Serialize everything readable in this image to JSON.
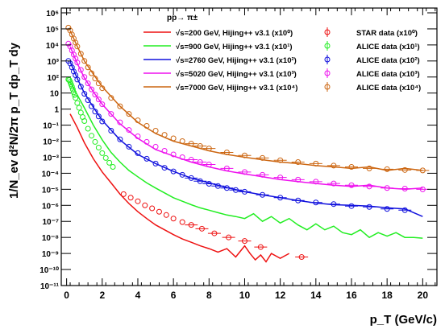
{
  "chart_data": {
    "type": "line",
    "title": "",
    "plot_label": "pp→ π±",
    "xlabel": "p_T (GeV/c)",
    "ylabel": "1/N_ev d²N/2π p_T dp_T dy",
    "x_ticks": [
      0,
      2,
      4,
      6,
      8,
      10,
      12,
      14,
      16,
      18,
      20
    ],
    "xlim": [
      -0.3,
      20.8
    ],
    "y_scale": "log",
    "ylim_exp": [
      -11,
      6.3
    ],
    "y_tick_exponents": [
      -11,
      -10,
      -9,
      -8,
      -7,
      -6,
      -5,
      -4,
      -3,
      -2,
      -1,
      0,
      1,
      2,
      3,
      4,
      5,
      6
    ],
    "y_tick_labels": [
      "10^-11",
      "10^-10",
      "10^-9",
      "10^-8",
      "10^-7",
      "10^-6",
      "10^-5",
      "10^-4",
      "10^-3",
      "10^-2",
      "10^-1",
      "1",
      "10",
      "10^2",
      "10^3",
      "10^4",
      "10^5",
      "10^6"
    ],
    "legend_position": "top-right",
    "grid": false,
    "series": [
      {
        "name": "√s=200 GeV, Hijing++ v3.1 (x10⁰)",
        "color": "#ee1111",
        "kind": "line",
        "x": [
          0.2,
          0.6,
          1,
          1.5,
          2,
          2.5,
          3,
          3.5,
          4,
          4.5,
          5,
          5.5,
          6,
          6.5,
          7,
          7.5,
          8,
          8.5,
          9,
          9.5,
          10,
          10.3,
          10.6,
          10.9,
          11.2,
          11.5,
          12,
          12.5
        ],
        "y": [
          0.5,
          0.07,
          0.008,
          0.0008,
          0.00012,
          2.5e-05,
          5e-06,
          1.3e-06,
          4e-07,
          1.5e-07,
          6e-08,
          3e-08,
          1.5e-08,
          8e-09,
          5e-09,
          3e-09,
          2e-09,
          1.2e-09,
          2e-09,
          6e-10,
          3e-09,
          1e-09,
          4e-10,
          8e-10,
          3e-10,
          1e-09,
          5e-10,
          1e-09
        ]
      },
      {
        "name": "STAR data (x10⁰)",
        "color": "#ee1111",
        "kind": "points",
        "x": [
          3.2,
          3.6,
          4.0,
          4.4,
          4.8,
          5.2,
          5.6,
          6.0,
          6.5,
          7.0,
          7.6,
          8.3,
          9.1,
          10.0,
          10.9,
          13.2
        ],
        "y": [
          5e-06,
          3e-06,
          1.8e-06,
          1e-06,
          6.5e-07,
          4e-07,
          2.5e-07,
          1.5e-07,
          9e-08,
          6e-08,
          3.5e-08,
          1.8e-08,
          1e-08,
          6e-09,
          2.5e-09,
          6e-10
        ]
      },
      {
        "name": "√s=900 GeV, Hijing++ v3.1 (x10¹)",
        "color": "#22ee22",
        "kind": "line",
        "x": [
          0.2,
          0.5,
          1,
          1.5,
          2,
          2.5,
          3,
          3.5,
          4,
          4.5,
          5,
          5.5,
          6,
          6.5,
          7,
          7.5,
          8,
          8.5,
          9,
          9.5,
          10,
          10.5,
          11,
          11.5,
          12,
          12.5,
          13,
          13.5,
          14,
          14.5,
          15,
          15.5,
          16,
          16.5,
          17,
          17.5,
          18,
          18.5,
          19,
          19.5,
          20
        ],
        "y": [
          50,
          12,
          1.2,
          0.1,
          0.012,
          0.002,
          0.0005,
          0.00015,
          6e-05,
          2.5e-05,
          1.2e-05,
          6e-06,
          3e-06,
          1.8e-06,
          1.1e-06,
          7e-07,
          5e-07,
          3.5e-07,
          2.5e-07,
          2e-07,
          1.5e-07,
          3e-07,
          1e-07,
          2e-07,
          8e-08,
          1.5e-07,
          6e-08,
          3e-08,
          7e-08,
          3e-08,
          5e-08,
          2e-08,
          1.5e-08,
          3e-08,
          1e-08,
          2e-08,
          1.2e-08,
          2e-08,
          1e-08,
          1e-08,
          9e-09
        ]
      },
      {
        "name": "ALICE data (x10¹)",
        "color": "#22ee22",
        "kind": "points",
        "x": [
          0.1,
          0.15,
          0.2,
          0.25,
          0.3,
          0.35,
          0.4,
          0.45,
          0.5,
          0.6,
          0.7,
          0.8,
          0.9,
          1.0,
          1.2,
          1.4,
          1.6,
          1.8,
          2.0,
          2.2,
          2.4,
          2.6
        ],
        "y": [
          70,
          65,
          50,
          35,
          25,
          17,
          11,
          7.5,
          5,
          2.4,
          1.2,
          0.6,
          0.32,
          0.18,
          0.06,
          0.022,
          0.009,
          0.004,
          0.0018,
          0.0009,
          0.00045,
          0.00025
        ]
      },
      {
        "name": "√s=2760 GeV, Hijing++ v3.1 (x10²)",
        "color": "#1111dd",
        "kind": "line",
        "x": [
          0.2,
          0.6,
          1,
          1.5,
          2,
          3,
          4,
          5,
          6,
          7,
          8,
          9,
          10,
          11,
          12,
          13,
          14,
          15,
          16,
          17,
          18,
          19,
          20
        ],
        "y": [
          900,
          80,
          10,
          1.3,
          0.2,
          0.012,
          0.0015,
          0.0004,
          0.00013,
          5e-05,
          2.5e-05,
          1.3e-05,
          7e-06,
          4.5e-06,
          3e-06,
          2e-06,
          1.4e-06,
          1.1e-06,
          1e-06,
          9e-07,
          7e-07,
          6e-07,
          2e-07
        ]
      },
      {
        "name": "ALICE data (x10²)",
        "color": "#1111dd",
        "kind": "points",
        "x": [
          0.1,
          0.2,
          0.3,
          0.4,
          0.5,
          0.6,
          0.8,
          1.0,
          1.2,
          1.4,
          1.6,
          1.8,
          2.0,
          2.5,
          3,
          3.5,
          4,
          4.5,
          5,
          5.5,
          6,
          6.5,
          7,
          7.5,
          8,
          8.5,
          9,
          9.5,
          10,
          11,
          12,
          13,
          14,
          15,
          16,
          17,
          18,
          19
        ],
        "y": [
          1000,
          700,
          400,
          220,
          130,
          70,
          25,
          9,
          3.6,
          1.5,
          0.7,
          0.35,
          0.17,
          0.045,
          0.013,
          0.0045,
          0.0018,
          0.0008,
          0.0004,
          0.00022,
          0.00013,
          8e-05,
          5e-05,
          3.2e-05,
          2.2e-05,
          1.6e-05,
          1.2e-05,
          9e-06,
          7e-06,
          4.5e-06,
          3e-06,
          2e-06,
          1.5e-06,
          1.2e-06,
          9e-07,
          8e-07,
          6e-07,
          5e-07
        ]
      },
      {
        "name": "√s=5020 GeV, Hijing++ v3.1 (x10³)",
        "color": "#ee11ee",
        "kind": "line",
        "x": [
          0.2,
          0.6,
          1,
          1.5,
          2,
          3,
          4,
          5,
          6,
          7,
          8,
          9,
          10,
          11,
          12,
          13,
          14,
          15,
          16,
          17,
          18,
          19,
          20
        ],
        "y": [
          8000,
          700,
          90,
          12,
          2,
          0.12,
          0.015,
          0.003,
          0.0012,
          0.0005,
          0.00025,
          0.00014,
          9e-05,
          6e-05,
          4e-05,
          3e-05,
          2.3e-05,
          1.8e-05,
          1.5e-05,
          1.8e-05,
          1.2e-05,
          1e-05,
          1.2e-05
        ]
      },
      {
        "name": "ALICE data (x10³)",
        "color": "#ee11ee",
        "kind": "points",
        "x": [
          0.1,
          0.2,
          0.3,
          0.4,
          0.5,
          0.6,
          0.8,
          1.0,
          1.2,
          1.4,
          1.6,
          1.8,
          2.0,
          2.5,
          3,
          3.5,
          4,
          4.5,
          5,
          5.5,
          6,
          6.5,
          7,
          7.5,
          8,
          9,
          10,
          11,
          12,
          13,
          14,
          15,
          16,
          17,
          18,
          19,
          20
        ],
        "y": [
          12000,
          8000,
          4500,
          2500,
          1400,
          800,
          280,
          100,
          40,
          17,
          8,
          4,
          2,
          0.5,
          0.15,
          0.05,
          0.02,
          0.009,
          0.0045,
          0.0025,
          0.0015,
          0.001,
          0.0007,
          0.0005,
          0.00035,
          0.0002,
          0.00012,
          8e-05,
          5.5e-05,
          4e-05,
          3e-05,
          2.3e-05,
          1.8e-05,
          1.5e-05,
          1.2e-05,
          1.1e-05,
          1e-05
        ]
      },
      {
        "name": "√s=7000 GeV, Hijing++ v3.1 (x10⁴)",
        "color": "#cc6611",
        "kind": "line",
        "x": [
          0.2,
          0.6,
          1,
          1.5,
          2,
          3,
          4,
          5,
          6,
          7,
          8,
          9,
          10,
          11,
          12,
          13,
          14,
          15,
          16,
          17,
          18,
          19,
          20
        ],
        "y": [
          80000,
          8000,
          1000,
          150,
          25,
          1.5,
          0.15,
          0.03,
          0.01,
          0.005,
          0.0025,
          0.0015,
          0.001,
          0.0007,
          0.0005,
          0.0004,
          0.0003,
          0.00025,
          0.0002,
          0.00025,
          0.00015,
          0.0002,
          0.00015
        ]
      },
      {
        "name": "ALICE data (x10⁴)",
        "color": "#cc6611",
        "kind": "points",
        "x": [
          0.1,
          0.2,
          0.3,
          0.4,
          0.5,
          0.6,
          0.8,
          1.0,
          1.2,
          1.4,
          1.6,
          1.8,
          2.0,
          2.5,
          3,
          3.5,
          4,
          4.5,
          5,
          5.5,
          6,
          6.5,
          7,
          7.5,
          8,
          9,
          10,
          11,
          12,
          13,
          14,
          15,
          16,
          17,
          18,
          19,
          20
        ],
        "y": [
          120000,
          80000,
          45000,
          25000,
          14000,
          8000,
          2800,
          1000,
          400,
          170,
          80,
          40,
          20,
          5,
          1.5,
          0.5,
          0.2,
          0.09,
          0.045,
          0.025,
          0.015,
          0.01,
          0.007,
          0.005,
          0.0035,
          0.002,
          0.0013,
          0.0009,
          0.00065,
          0.0005,
          0.0004,
          0.0003,
          0.00025,
          0.0002,
          0.00018,
          0.00016,
          0.00015
        ]
      }
    ]
  }
}
